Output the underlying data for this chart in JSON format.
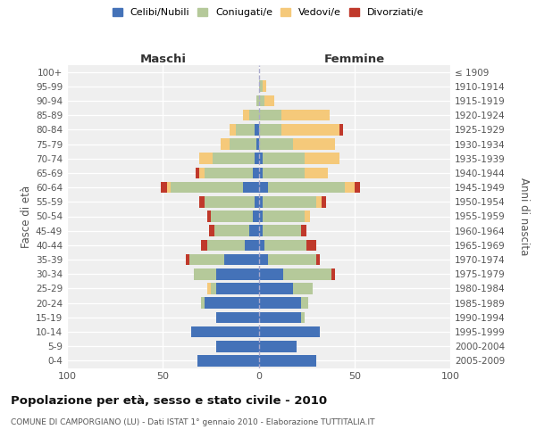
{
  "age_groups": [
    "100+",
    "95-99",
    "90-94",
    "85-89",
    "80-84",
    "75-79",
    "70-74",
    "65-69",
    "60-64",
    "55-59",
    "50-54",
    "45-49",
    "40-44",
    "35-39",
    "30-34",
    "25-29",
    "20-24",
    "15-19",
    "10-14",
    "5-9",
    "0-4"
  ],
  "birth_years": [
    "≤ 1909",
    "1910-1914",
    "1915-1919",
    "1920-1924",
    "1925-1929",
    "1930-1934",
    "1935-1939",
    "1940-1944",
    "1945-1949",
    "1950-1954",
    "1955-1959",
    "1960-1964",
    "1965-1969",
    "1970-1974",
    "1975-1979",
    "1980-1984",
    "1985-1989",
    "1990-1994",
    "1995-1999",
    "2000-2004",
    "2005-2009"
  ],
  "males": {
    "celibi": [
      0,
      0,
      0,
      0,
      2,
      1,
      2,
      3,
      8,
      2,
      3,
      5,
      7,
      18,
      22,
      22,
      28,
      22,
      35,
      22,
      32
    ],
    "coniugati": [
      0,
      0,
      1,
      5,
      10,
      14,
      22,
      25,
      38,
      26,
      22,
      18,
      20,
      18,
      12,
      3,
      2,
      0,
      0,
      0,
      0
    ],
    "vedovi": [
      0,
      0,
      0,
      3,
      3,
      5,
      7,
      3,
      2,
      0,
      0,
      0,
      0,
      0,
      0,
      2,
      0,
      0,
      0,
      0,
      0
    ],
    "divorziati": [
      0,
      0,
      0,
      0,
      0,
      0,
      0,
      2,
      3,
      3,
      2,
      3,
      3,
      2,
      0,
      0,
      0,
      0,
      0,
      0,
      0
    ]
  },
  "females": {
    "nubili": [
      0,
      0,
      0,
      0,
      0,
      0,
      2,
      2,
      5,
      2,
      2,
      2,
      3,
      5,
      13,
      18,
      22,
      22,
      32,
      20,
      30
    ],
    "coniugate": [
      0,
      2,
      3,
      12,
      12,
      18,
      22,
      22,
      40,
      28,
      22,
      20,
      22,
      25,
      25,
      10,
      4,
      2,
      0,
      0,
      0
    ],
    "vedove": [
      0,
      2,
      5,
      25,
      30,
      22,
      18,
      12,
      5,
      3,
      3,
      0,
      0,
      0,
      0,
      0,
      0,
      0,
      0,
      0,
      0
    ],
    "divorziate": [
      0,
      0,
      0,
      0,
      2,
      0,
      0,
      0,
      3,
      2,
      0,
      3,
      5,
      2,
      2,
      0,
      0,
      0,
      0,
      0,
      0
    ]
  },
  "colors": {
    "celibi": "#4472b8",
    "coniugati": "#b5c99a",
    "vedovi": "#f5c97a",
    "divorziati": "#c0392b"
  },
  "xlim": 100,
  "title": "Popolazione per età, sesso e stato civile - 2010",
  "subtitle": "COMUNE DI CAMPORGIANO (LU) - Dati ISTAT 1° gennaio 2010 - Elaborazione TUTTITALIA.IT",
  "ylabel_left": "Fasce di età",
  "ylabel_right": "Anni di nascita"
}
